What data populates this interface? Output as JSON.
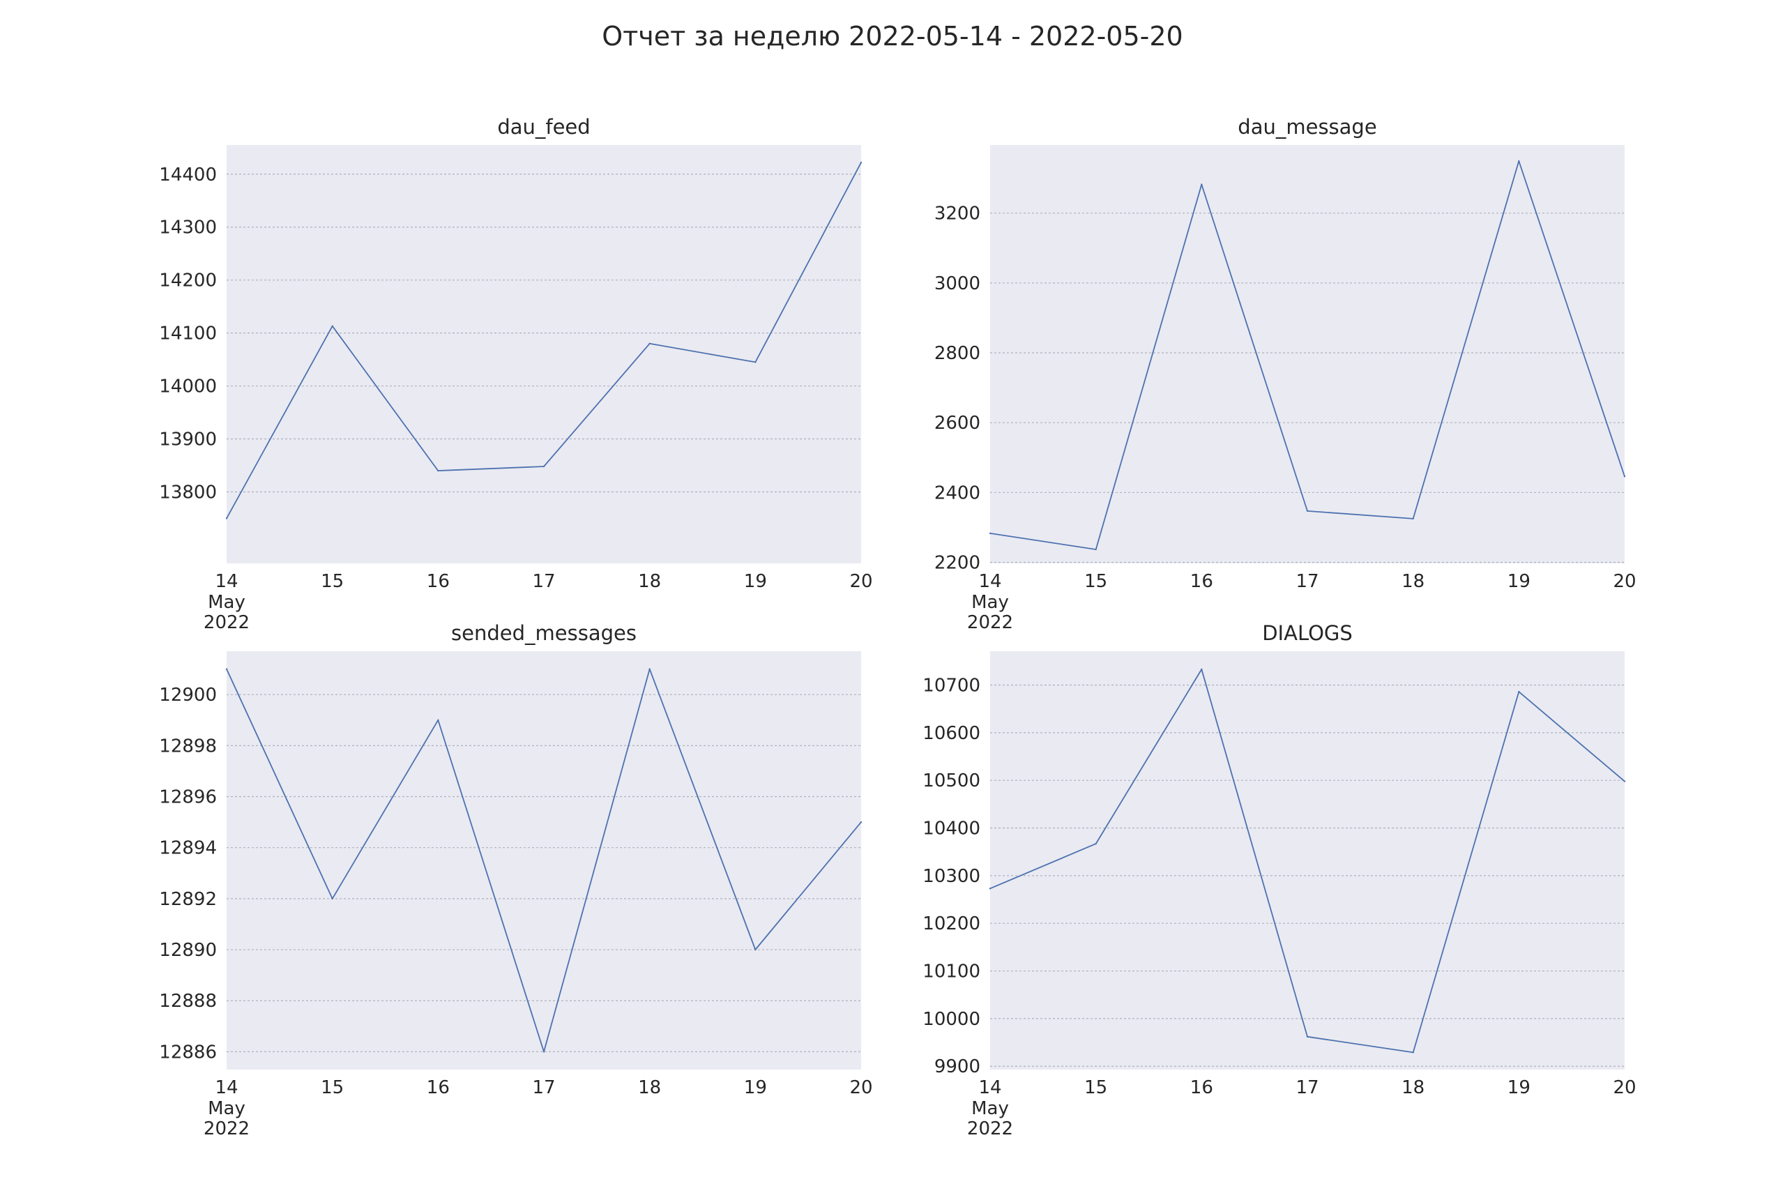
{
  "suptitle": "Отчет за неделю 2022-05-14 - 2022-05-20",
  "colors": {
    "plot_bg": "#eaeaf2",
    "grid": "#b0b0c0",
    "line": "#4c72b0"
  },
  "x_tick_labels": [
    "14",
    "15",
    "16",
    "17",
    "18",
    "19",
    "20"
  ],
  "x_first_tick_extra": [
    "May",
    "2022"
  ],
  "chart_data": [
    {
      "type": "line",
      "title": "dau_feed",
      "x": [
        "2022-05-14",
        "2022-05-15",
        "2022-05-16",
        "2022-05-17",
        "2022-05-18",
        "2022-05-19",
        "2022-05-20"
      ],
      "values": [
        13750,
        14113,
        13840,
        13848,
        14080,
        14045,
        14422
      ],
      "ylim": [
        13665,
        14455
      ],
      "yticks": [
        13800,
        13900,
        14000,
        14100,
        14200,
        14300,
        14400
      ],
      "grid": true
    },
    {
      "type": "line",
      "title": "dau_message",
      "x": [
        "2022-05-14",
        "2022-05-15",
        "2022-05-16",
        "2022-05-17",
        "2022-05-18",
        "2022-05-19",
        "2022-05-20"
      ],
      "values": [
        2283,
        2237,
        3282,
        2347,
        2325,
        3349,
        2446
      ],
      "ylim": [
        2197,
        3395
      ],
      "yticks": [
        2200,
        2400,
        2600,
        2800,
        3000,
        3200
      ],
      "grid": true
    },
    {
      "type": "line",
      "title": "sended_messages",
      "x": [
        "2022-05-14",
        "2022-05-15",
        "2022-05-16",
        "2022-05-17",
        "2022-05-18",
        "2022-05-19",
        "2022-05-20"
      ],
      "values": [
        12901,
        12892,
        12899,
        12886,
        12901,
        12890,
        12895
      ],
      "ylim": [
        12885.3,
        12901.7
      ],
      "yticks": [
        12886,
        12888,
        12890,
        12892,
        12894,
        12896,
        12898,
        12900
      ],
      "grid": true
    },
    {
      "type": "line",
      "title": "DIALOGS",
      "x": [
        "2022-05-14",
        "2022-05-15",
        "2022-05-16",
        "2022-05-17",
        "2022-05-18",
        "2022-05-19",
        "2022-05-20"
      ],
      "values": [
        10273,
        10367,
        10733,
        9962,
        9929,
        10686,
        10498
      ],
      "ylim": [
        9893,
        10771
      ],
      "yticks": [
        9900,
        10000,
        10100,
        10200,
        10300,
        10400,
        10500,
        10600,
        10700
      ],
      "grid": true
    }
  ]
}
